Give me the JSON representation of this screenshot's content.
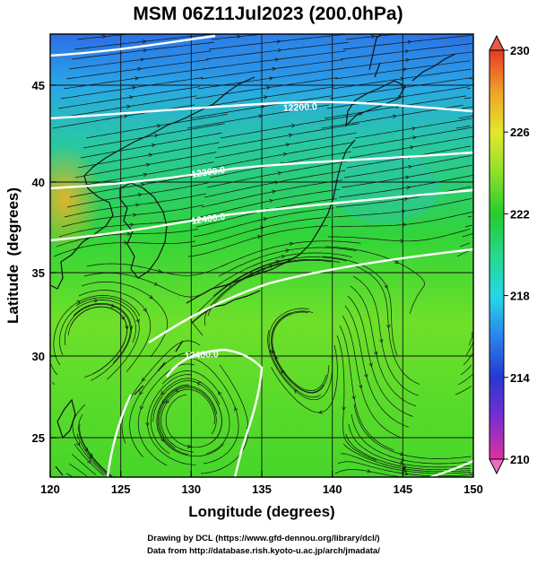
{
  "title": "MSM 06Z11Jul2023 (200.0hPa)",
  "xlabel": "Longitude (degrees)",
  "ylabel": "Latitude  (degrees)",
  "x_ticks": [
    120,
    125,
    130,
    135,
    140,
    145,
    150
  ],
  "y_ticks": [
    25,
    30,
    35,
    40,
    45
  ],
  "colorbar": {
    "ticks": [
      230,
      226,
      222,
      218,
      214,
      210
    ],
    "range": [
      210,
      230
    ],
    "colors": [
      "#e0309e",
      "#7a2fd0",
      "#2638d4",
      "#2a84ea",
      "#27d8e6",
      "#24d88a",
      "#24cc2c",
      "#8ee02a",
      "#e3e82a",
      "#f0a028",
      "#e83a22"
    ]
  },
  "contours": [
    {
      "label": "12300.0",
      "latitude": 46.3
    },
    {
      "label": "12200.0",
      "latitude": 43.0
    },
    {
      "label": "12300.0",
      "latitude": 40.0
    },
    {
      "label": "12400.0",
      "latitude": 38.0
    },
    {
      "label": "12400.0",
      "latitude": 29.8
    }
  ],
  "credits": {
    "line1": "Drawing by DCL (https://www.gfd-dennou.org/library/dcl/)",
    "line2": "Data from http://database.rish.kyoto-u.ac.jp/arch/jmadata/"
  }
}
